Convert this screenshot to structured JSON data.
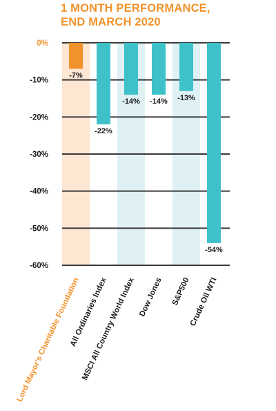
{
  "chart_data": {
    "type": "bar",
    "title_lines": [
      "1 MONTH PERFORMANCE,",
      "END MARCH 2020"
    ],
    "categories": [
      "Lord Mayor's Charitable Foundation",
      "All Ordinaries Index",
      "MSCI All Country World Index",
      "Dow Jones",
      "S&P500",
      "Crude Oil WTI"
    ],
    "values": [
      -7,
      -22,
      -14,
      -14,
      -13,
      -54
    ],
    "data_labels": [
      "-7%",
      "-22%",
      "-14%",
      "-14%",
      "-13%",
      "-54%"
    ],
    "y_ticks": [
      0,
      -10,
      -20,
      -30,
      -40,
      -50,
      -60
    ],
    "y_tick_labels": [
      "0%",
      "-10%",
      "-20%",
      "-30%",
      "-40%",
      "-50%",
      "-60%"
    ],
    "ylim": [
      -60,
      0
    ],
    "grid": true,
    "highlight_index": 0,
    "colors": {
      "bar": "#3fc1c9",
      "highlight_bar": "#f2922c",
      "highlight_band": "#fde6d2",
      "alt_band": "#dff1f5",
      "grid": "#3a3a3a",
      "title": "#f2922c"
    }
  }
}
